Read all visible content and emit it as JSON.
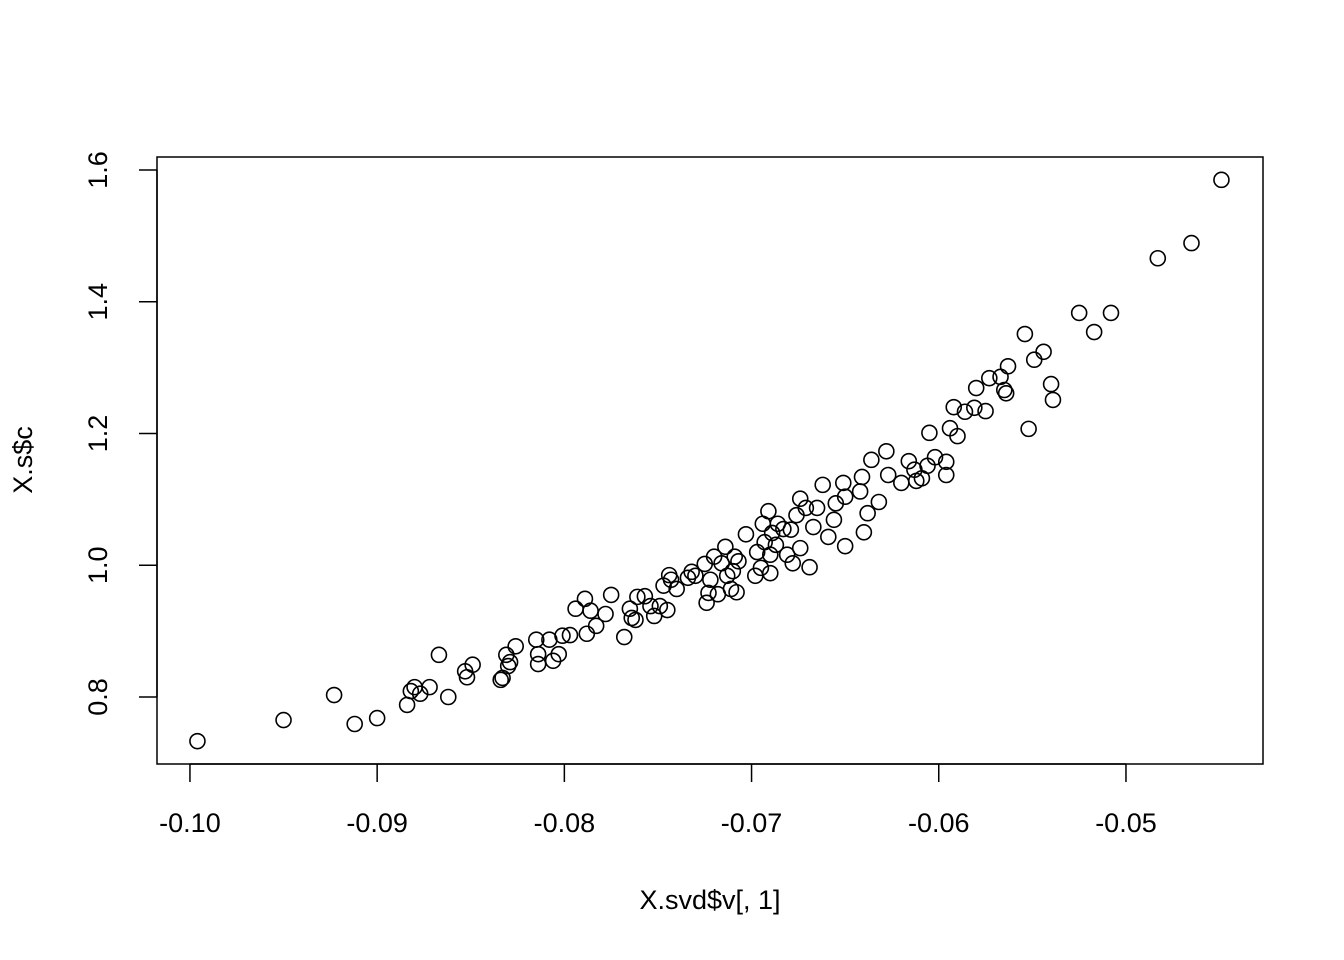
{
  "chart_data": {
    "type": "scatter",
    "x_label": "X.svd$v[, 1]",
    "y_label": "X.s$c",
    "color": "#000000",
    "xlim": [
      -0.10176,
      -0.04268
    ],
    "ylim": [
      0.6983,
      1.6197
    ],
    "xticks": [
      {
        "value": -0.1,
        "label": "-0.10"
      },
      -0.09,
      -0.08,
      -0.07,
      -0.06,
      -0.05
    ],
    "yticks": [
      0.8,
      {
        "value": 1.0,
        "label": "1.0"
      },
      1.2,
      1.4,
      1.6
    ],
    "x": [
      -0.0996,
      -0.095,
      -0.0923,
      -0.0912,
      -0.09,
      -0.0884,
      -0.0882,
      -0.088,
      -0.0877,
      -0.0872,
      -0.0867,
      -0.0862,
      -0.0853,
      -0.0852,
      -0.0849,
      -0.0834,
      -0.0833,
      -0.0831,
      -0.083,
      -0.0829,
      -0.0826,
      -0.0815,
      -0.0814,
      -0.0814,
      -0.0808,
      -0.0806,
      -0.0803,
      -0.0801,
      -0.0797,
      -0.0794,
      -0.0789,
      -0.0788,
      -0.0786,
      -0.0783,
      -0.0778,
      -0.0775,
      -0.0768,
      -0.0765,
      -0.0764,
      -0.0762,
      -0.0761,
      -0.0757,
      -0.0754,
      -0.0752,
      -0.0749,
      -0.0747,
      -0.0745,
      -0.0744,
      -0.0743,
      -0.074,
      -0.0734,
      -0.0732,
      -0.073,
      -0.0725,
      -0.0724,
      -0.0723,
      -0.0722,
      -0.072,
      -0.0718,
      -0.0716,
      -0.0714,
      -0.0713,
      -0.0711,
      -0.071,
      -0.0709,
      -0.0708,
      -0.0707,
      -0.0703,
      -0.0698,
      -0.0697,
      -0.0695,
      -0.0694,
      -0.0693,
      -0.0691,
      -0.069,
      -0.069,
      -0.0689,
      -0.0687,
      -0.0686,
      -0.0683,
      -0.0681,
      -0.0679,
      -0.0678,
      -0.0676,
      -0.0674,
      -0.0674,
      -0.0671,
      -0.0669,
      -0.0667,
      -0.0665,
      -0.0662,
      -0.0659,
      -0.0656,
      -0.0655,
      -0.0651,
      -0.065,
      -0.065,
      -0.0642,
      -0.0641,
      -0.064,
      -0.0638,
      -0.0636,
      -0.0632,
      -0.0628,
      -0.0627,
      -0.062,
      -0.0616,
      -0.0613,
      -0.0612,
      -0.0609,
      -0.0606,
      -0.0605,
      -0.0602,
      -0.0596,
      -0.0596,
      -0.0594,
      -0.0592,
      -0.059,
      -0.0586,
      -0.0581,
      -0.058,
      -0.0575,
      -0.0573,
      -0.0567,
      -0.0565,
      -0.0564,
      -0.0563,
      -0.0554,
      -0.0552,
      -0.0549,
      -0.0544,
      -0.054,
      -0.0539,
      -0.0525,
      -0.0517,
      -0.0508,
      -0.0483,
      -0.0465,
      -0.0449
    ],
    "values": [
      0.733,
      0.765,
      0.803,
      0.759,
      0.768,
      0.788,
      0.809,
      0.815,
      0.805,
      0.815,
      0.864,
      0.8,
      0.839,
      0.83,
      0.849,
      0.826,
      0.829,
      0.864,
      0.847,
      0.853,
      0.877,
      0.887,
      0.865,
      0.85,
      0.887,
      0.855,
      0.865,
      0.893,
      0.894,
      0.934,
      0.949,
      0.896,
      0.931,
      0.908,
      0.926,
      0.955,
      0.891,
      0.934,
      0.92,
      0.917,
      0.952,
      0.953,
      0.938,
      0.923,
      0.938,
      0.969,
      0.932,
      0.985,
      0.978,
      0.964,
      0.981,
      0.99,
      0.984,
      1.002,
      0.943,
      0.958,
      0.978,
      1.013,
      0.956,
      1.003,
      1.028,
      0.984,
      0.964,
      0.991,
      1.013,
      0.959,
      1.006,
      1.047,
      0.984,
      1.02,
      0.996,
      1.063,
      1.035,
      1.082,
      0.988,
      1.016,
      1.049,
      1.031,
      1.063,
      1.055,
      1.016,
      1.054,
      1.003,
      1.076,
      1.026,
      1.101,
      1.087,
      0.997,
      1.058,
      1.087,
      1.122,
      1.043,
      1.069,
      1.094,
      1.125,
      1.104,
      1.029,
      1.112,
      1.134,
      1.05,
      1.079,
      1.16,
      1.096,
      1.173,
      1.137,
      1.125,
      1.158,
      1.145,
      1.128,
      1.132,
      1.151,
      1.201,
      1.164,
      1.137,
      1.157,
      1.208,
      1.24,
      1.196,
      1.233,
      1.239,
      1.269,
      1.234,
      1.284,
      1.286,
      1.266,
      1.261,
      1.302,
      1.351,
      1.207,
      1.312,
      1.324,
      1.275,
      1.251,
      1.383,
      1.354,
      1.383,
      1.466,
      1.489,
      1.585
    ]
  }
}
